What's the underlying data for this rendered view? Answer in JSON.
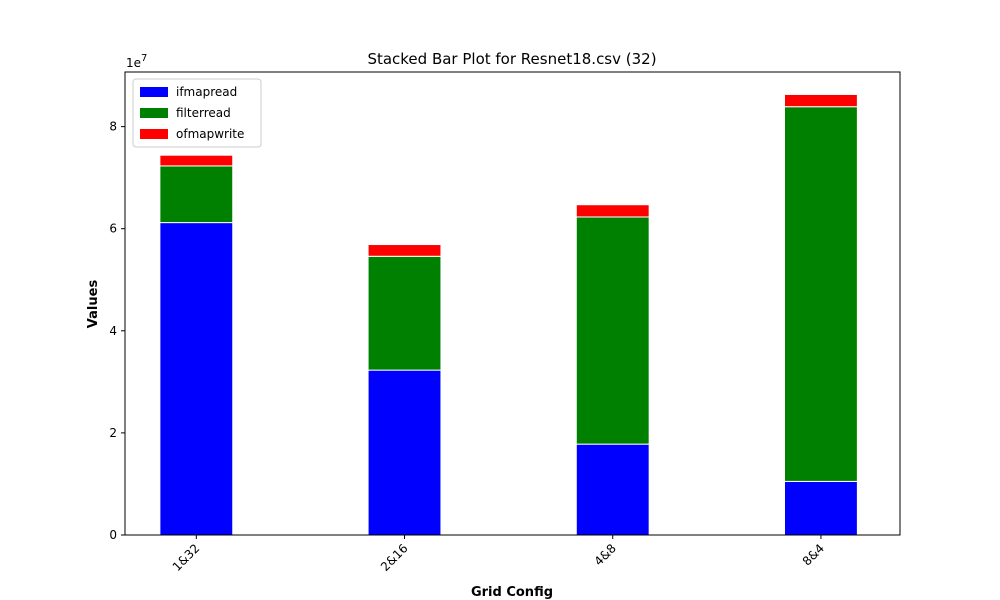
{
  "chart_data": {
    "type": "bar",
    "stacked": true,
    "title": "Stacked Bar Plot for Resnet18.csv (32)",
    "xlabel": "Grid Config",
    "ylabel": "Values",
    "y_multiplier_label": "1e7",
    "categories": [
      "1&32",
      "2&16",
      "4&8",
      "8&4"
    ],
    "series": [
      {
        "name": "ifmapread",
        "color": "#0000ff",
        "values": [
          61200000,
          32300000,
          17800000,
          10500000
        ]
      },
      {
        "name": "filterread",
        "color": "#008000",
        "values": [
          11100000,
          22300000,
          44500000,
          73400000
        ]
      },
      {
        "name": "ofmapwrite",
        "color": "#ff0000",
        "values": [
          2100000,
          2300000,
          2400000,
          2400000
        ]
      }
    ],
    "ylim": [
      0,
      90700000
    ],
    "yticks": [
      0,
      20000000,
      40000000,
      60000000,
      80000000
    ],
    "ytick_labels": [
      "0",
      "2",
      "4",
      "6",
      "8"
    ],
    "grid": false,
    "legend_position": "upper-left"
  }
}
